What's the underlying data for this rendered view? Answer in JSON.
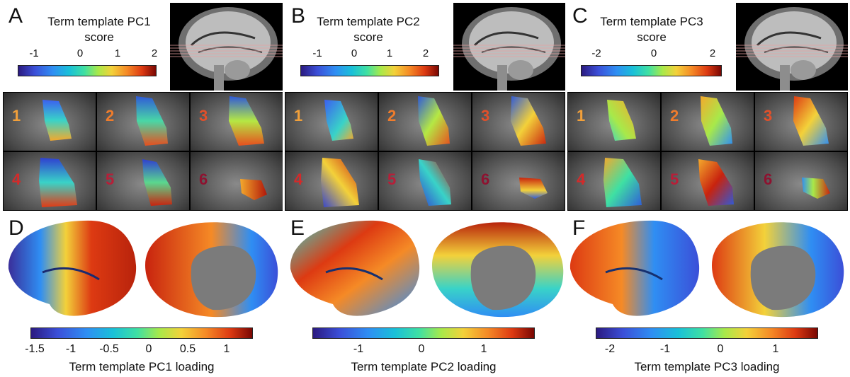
{
  "figure": {
    "panels_top": [
      {
        "letter": "A",
        "title_line1": "Term template PC1",
        "title_line2": "score",
        "ticks": [
          "-1",
          "0",
          "1",
          "2"
        ],
        "slices": [
          "1",
          "2",
          "3",
          "4",
          "5",
          "6"
        ]
      },
      {
        "letter": "B",
        "title_line1": "Term template PC2",
        "title_line2": "score",
        "ticks": [
          "-1",
          "0",
          "1",
          "2"
        ],
        "slices": [
          "1",
          "2",
          "3",
          "4",
          "5",
          "6"
        ]
      },
      {
        "letter": "C",
        "title_line1": "Term template PC3",
        "title_line2": "score",
        "ticks": [
          "-2",
          "0",
          "2"
        ],
        "slices": [
          "1",
          "2",
          "3",
          "4",
          "5",
          "6"
        ]
      }
    ],
    "panels_bottom": [
      {
        "letter": "D",
        "label": "Term template PC1 loading",
        "ticks": [
          "-1.5",
          "-1",
          "-0.5",
          "0",
          "0.5",
          "1"
        ]
      },
      {
        "letter": "E",
        "label": "Term template PC2 loading",
        "ticks": [
          "-1",
          "0",
          "1"
        ]
      },
      {
        "letter": "F",
        "label": "Term template PC3 loading",
        "ticks": [
          "-2",
          "-1",
          "0",
          "1"
        ]
      }
    ],
    "slice_number_colors": [
      "#f2a03a",
      "#ef7c2c",
      "#e2502a",
      "#d42a2a",
      "#b81e38",
      "#8e1230"
    ]
  }
}
